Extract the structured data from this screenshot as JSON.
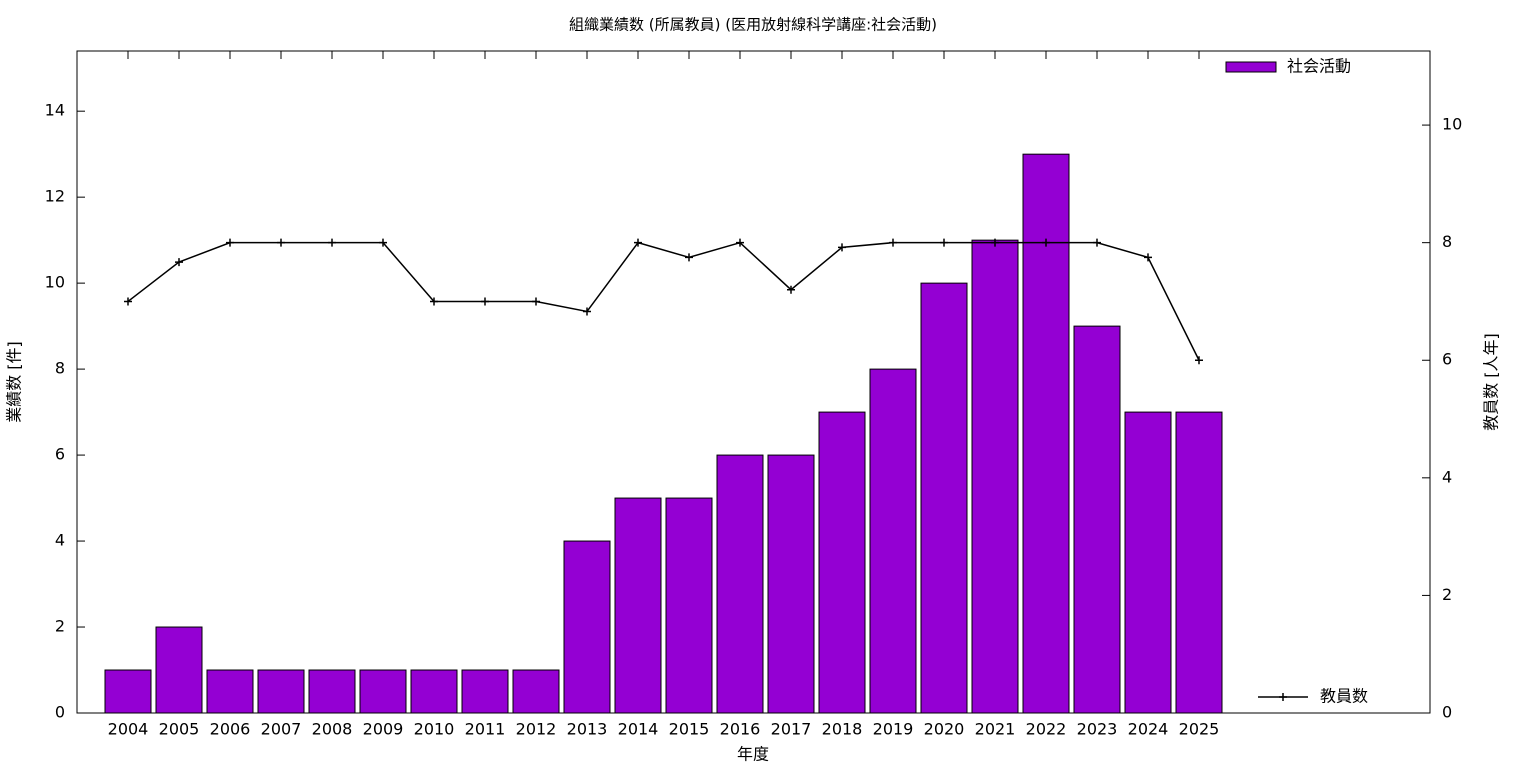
{
  "chart_data": {
    "type": "bar-line",
    "title": "組織業績数 (所属教員) (医用放射線科学講座:社会活動)",
    "xlabel": "年度",
    "ylabel": "業績数 [件]",
    "y2label": "教員数 [人年]",
    "categories": [
      "2004",
      "2005",
      "2006",
      "2007",
      "2008",
      "2009",
      "2010",
      "2011",
      "2012",
      "2013",
      "2014",
      "2015",
      "2016",
      "2017",
      "2018",
      "2019",
      "2020",
      "2021",
      "2022",
      "2023",
      "2024",
      "2025"
    ],
    "series": [
      {
        "name": "社会活動",
        "type": "bar",
        "color": "#9400d3",
        "values": [
          1,
          2,
          1,
          1,
          1,
          1,
          1,
          1,
          1,
          4,
          5,
          5,
          6,
          6,
          7,
          8,
          10,
          11,
          13,
          9,
          7,
          7
        ]
      },
      {
        "name": "教員数",
        "type": "line",
        "axis": "y2",
        "color": "#000000",
        "values": [
          7,
          7.67,
          8,
          8,
          8,
          8,
          7,
          7,
          7,
          6.83,
          8,
          7.75,
          8,
          7.2,
          7.92,
          8,
          8,
          8,
          8,
          8,
          7.75,
          6
        ]
      }
    ],
    "ylim": [
      0,
      15.4
    ],
    "yticks": [
      0,
      2,
      4,
      6,
      8,
      10,
      12,
      14
    ],
    "y2lim": [
      0,
      11.26
    ],
    "y2ticks": [
      0,
      2,
      4,
      6,
      8,
      10
    ]
  }
}
